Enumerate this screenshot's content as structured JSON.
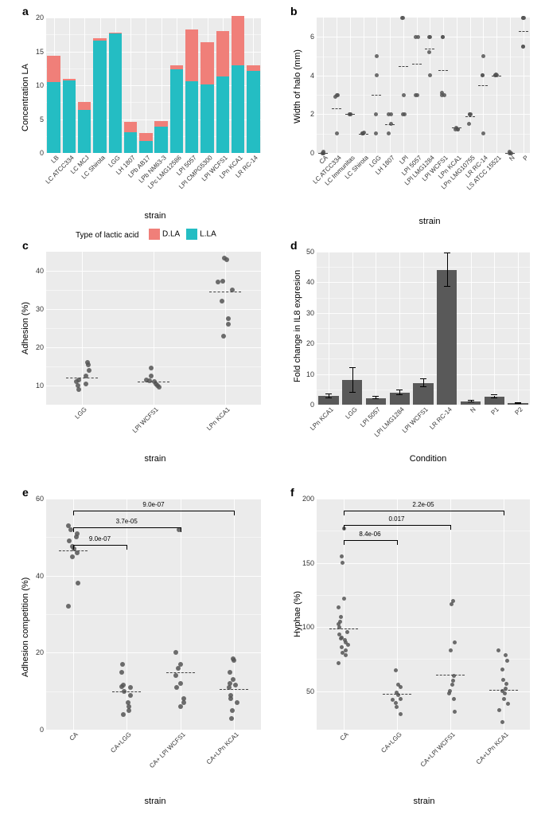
{
  "grid_color": "#ffffff",
  "panel_bg": "#ebebeb",
  "text_color": "#333333",
  "dot_color": "#555555",
  "legend_a": {
    "title": "Type of lactic acid",
    "items": [
      {
        "label": "D.LA",
        "color": "#f07f79"
      },
      {
        "label": "L.LA",
        "color": "#24bdc3"
      }
    ]
  },
  "panel_a": {
    "label": "a",
    "x_title": "strain",
    "y_title": "Concentration LA",
    "ylim": [
      0,
      20
    ],
    "yticks": [
      0,
      5,
      10,
      15,
      20
    ],
    "categories": [
      "LB",
      "LC ATCC334",
      "LC MCJ",
      "LC Shirota",
      "LGG",
      "LH 1807",
      "LPb AB17",
      "LPb NM63-3",
      "LPc LMG12586",
      "LPl 5057",
      "LPl CMPG5300",
      "LPl WCFS1",
      "LPn KCA1",
      "LR RC-14"
    ],
    "L_LA": [
      10.5,
      10.7,
      6.4,
      16.6,
      17.6,
      3.1,
      1.8,
      3.9,
      12.4,
      10.6,
      10.1,
      11.3,
      12.9,
      12.1
    ],
    "D_LA": [
      3.8,
      0.2,
      1.1,
      0.3,
      0.2,
      1.5,
      1.1,
      0.85,
      0.5,
      7.6,
      6.3,
      6.7,
      7.3,
      0.8
    ],
    "color_L": "#24bdc3",
    "color_D": "#f07f79",
    "bar_width": 0.85
  },
  "panel_b": {
    "label": "b",
    "x_title": "strain",
    "y_title": "Width of halo (mm)",
    "ylim": [
      0,
      7
    ],
    "yticks": [
      0,
      2,
      4,
      6
    ],
    "categories": [
      "CA",
      "LC ATCC334",
      "LC Immunitas",
      "LC Shirota",
      "LGG",
      "LH 1807",
      "LPl",
      "LPl 5057",
      "LPl LMG1284",
      "LPl WCFS1",
      "LPn KCA1",
      "LPn LMG10755",
      "LR RC-14",
      "LS ATCC 15521",
      "N",
      "P"
    ],
    "points": {
      "CA": [
        0,
        0,
        0,
        0,
        0.05
      ],
      "LC ATCC334": [
        1,
        2.9,
        3,
        3
      ],
      "LC Immunitas": [
        2,
        2,
        2,
        2
      ],
      "LC Shirota": [
        1,
        1,
        1,
        1.05
      ],
      "LGG": [
        2,
        4,
        5,
        1
      ],
      "LH 1807": [
        1,
        1.5,
        2,
        2
      ],
      "LPl": [
        2,
        2,
        7,
        7,
        3
      ],
      "LPl 5057": [
        3,
        3,
        6,
        6
      ],
      "LPl LMG1284": [
        4,
        6,
        6,
        5.2
      ],
      "LPl WCFS1": [
        3,
        3,
        6,
        6,
        3.1
      ],
      "LPn KCA1": [
        1.2,
        1.2,
        1.2,
        1.3
      ],
      "LPn LMG10755": [
        1.5,
        2,
        2,
        2
      ],
      "LR RC-14": [
        1,
        4,
        4,
        5
      ],
      "LS ATCC 15521": [
        4,
        4,
        4.05,
        4
      ],
      "N": [
        0,
        0,
        0,
        0.05
      ],
      "P": [
        7,
        5.5,
        7,
        7,
        5.5
      ]
    },
    "means": {
      "CA": 0,
      "LC ATCC334": 2.3,
      "LC Immunitas": 2,
      "LC Shirota": 1,
      "LGG": 3,
      "LH 1807": 1.5,
      "LPl": 4.5,
      "LPl 5057": 4.6,
      "LPl LMG1284": 5.4,
      "LPl WCFS1": 4.3,
      "LPn KCA1": 1.3,
      "LPn LMG10755": 1.9,
      "LR RC-14": 3.5,
      "LS ATCC 15521": 4,
      "N": 0,
      "P": 6.3
    }
  },
  "panel_c": {
    "label": "c",
    "x_title": "strain",
    "y_title": "Adhesion (%)",
    "ylim": [
      5,
      45
    ],
    "yticks": [
      10,
      20,
      30,
      40
    ],
    "categories": [
      "LGG",
      "LPl WCFS1",
      "LPn KCA1"
    ],
    "points": {
      "LGG": [
        9,
        10,
        10.5,
        11,
        11.5,
        12.5,
        16,
        14,
        15.5
      ],
      "LPl WCFS1": [
        9.5,
        10,
        10.5,
        11,
        11.5,
        12.5,
        14.5,
        11.2
      ],
      "LPn KCA1": [
        23,
        26,
        27.5,
        32,
        35,
        37,
        37.3,
        43,
        43.3
      ]
    },
    "means": {
      "LGG": 12,
      "LPl WCFS1": 11,
      "LPn KCA1": 34.5
    }
  },
  "panel_d": {
    "label": "d",
    "x_title": "Condition",
    "y_title": "Fold change in IL8 expresion",
    "ylim": [
      0,
      50
    ],
    "yticks": [
      0,
      10,
      20,
      30,
      40,
      50
    ],
    "categories": [
      "LPn KCA1",
      "LGG",
      "LPl 5057",
      "LPl LMG1284",
      "LPl WCFS1",
      "LR RC-14",
      "N",
      "P1",
      "P2"
    ],
    "values": [
      2.8,
      8,
      2.2,
      4,
      7,
      44,
      1,
      2.5,
      0.4
    ],
    "errors": [
      0.7,
      4,
      0.4,
      0.8,
      1.3,
      5.5,
      0.2,
      0.5,
      0.1
    ],
    "bar_color": "#595959",
    "bar_width": 0.85
  },
  "panel_e": {
    "label": "e",
    "x_title": "strain",
    "y_title": "Adhesion competition (%)",
    "ylim": [
      0,
      60
    ],
    "yticks": [
      0,
      20,
      40,
      60
    ],
    "categories": [
      "CA",
      "CA+LGG",
      "CA+ LPl WCFS1",
      "CA+LPn KCA1"
    ],
    "points": {
      "CA": [
        32,
        38,
        45,
        46,
        47,
        47.5,
        49,
        50,
        51,
        52,
        53
      ],
      "CA+LGG": [
        4,
        5,
        6,
        7,
        9,
        10,
        11,
        11.5,
        15,
        17,
        11.2
      ],
      "CA+ LPl WCFS1": [
        6,
        7,
        8,
        11,
        12,
        14,
        16,
        17,
        20,
        52
      ],
      "CA+LPn KCA1": [
        3,
        5,
        7,
        8,
        9,
        11,
        11.5,
        12,
        13,
        15,
        18,
        18.5
      ]
    },
    "means": {
      "CA": 46.5,
      "CA+LGG": 10,
      "CA+ LPl WCFS1": 15,
      "CA+LPn KCA1": 10.5
    },
    "sig": [
      {
        "from": 0,
        "to": 1,
        "label": "9.0e-07",
        "level": 0
      },
      {
        "from": 0,
        "to": 2,
        "label": "3.7e-05",
        "level": 1
      },
      {
        "from": 0,
        "to": 3,
        "label": "9.0e-07",
        "level": 2
      }
    ]
  },
  "panel_f": {
    "label": "f",
    "x_title": "strain",
    "y_title": "Hyphae (%)",
    "ylim": [
      20,
      200
    ],
    "yticks": [
      50,
      100,
      150,
      200
    ],
    "categories": [
      "CA",
      "CA+LGG",
      "CA+LPl WCFS1",
      "CA+LPn KCA1"
    ],
    "points": {
      "CA": [
        72,
        78,
        80,
        82,
        84,
        86,
        88,
        90,
        91,
        92,
        94,
        96,
        100,
        102,
        104,
        108,
        115,
        122,
        150,
        155,
        177
      ],
      "CA+LGG": [
        32,
        38,
        41,
        43,
        44,
        47,
        49,
        53,
        55,
        66
      ],
      "CA+LPl WCFS1": [
        34,
        44,
        48,
        50,
        55,
        58,
        62,
        82,
        88,
        118,
        120
      ],
      "CA+LPn KCA1": [
        26,
        35,
        40,
        44,
        48,
        50,
        52,
        56,
        59,
        67,
        74,
        78,
        82
      ]
    },
    "means": {
      "CA": 99,
      "CA+LGG": 48,
      "CA+LPl WCFS1": 63,
      "CA+LPn KCA1": 51
    },
    "sig": [
      {
        "from": 0,
        "to": 1,
        "label": "8.4e-06",
        "level": 0
      },
      {
        "from": 0,
        "to": 2,
        "label": "0.017",
        "level": 1
      },
      {
        "from": 0,
        "to": 3,
        "label": "2.2e-05",
        "level": 2
      }
    ]
  }
}
